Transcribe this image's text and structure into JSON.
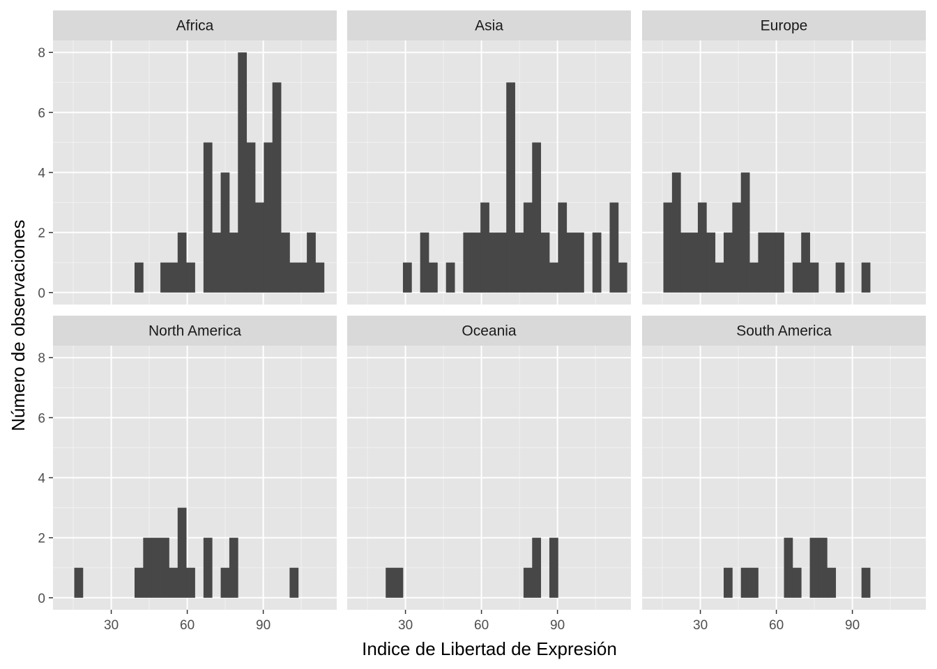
{
  "chart_data": {
    "type": "bar",
    "facet_layout": "2x3 grid",
    "xlabel": "Indice de Libertad de Expresión",
    "ylabel": "Número de observaciones",
    "xlim": [
      7,
      119
    ],
    "ylim": [
      -0.4,
      8.4
    ],
    "x_ticks": [
      30,
      60,
      90
    ],
    "y_ticks": [
      0,
      2,
      4,
      6,
      8
    ],
    "bin_width": 3.4,
    "bin_start": 15.4,
    "grid": true,
    "bar_color": "#474747",
    "panel_background": "#e5e5e5",
    "strip_background": "#d9d9d9",
    "facets": [
      {
        "label": "Africa",
        "counts": [
          0,
          0,
          0,
          0,
          0,
          0,
          0,
          1,
          0,
          0,
          1,
          1,
          2,
          1,
          0,
          5,
          2,
          4,
          2,
          8,
          5,
          3,
          5,
          7,
          2,
          1,
          1,
          2,
          1
        ]
      },
      {
        "label": "Asia",
        "counts": [
          0,
          0,
          0,
          0,
          1,
          0,
          2,
          1,
          0,
          1,
          0,
          2,
          2,
          3,
          2,
          2,
          7,
          2,
          3,
          5,
          2,
          1,
          3,
          2,
          2,
          0,
          2,
          0,
          3,
          1
        ]
      },
      {
        "label": "Europe",
        "counts": [
          3,
          4,
          2,
          2,
          3,
          2,
          1,
          2,
          3,
          4,
          1,
          2,
          2,
          2,
          0,
          1,
          2,
          1,
          0,
          0,
          1,
          0,
          0,
          1
        ]
      },
      {
        "label": "North America",
        "counts": [
          1,
          0,
          0,
          0,
          0,
          0,
          0,
          1,
          2,
          2,
          2,
          1,
          3,
          1,
          0,
          2,
          0,
          1,
          2,
          0,
          0,
          0,
          0,
          0,
          0,
          1
        ]
      },
      {
        "label": "Oceania",
        "counts": [
          0,
          0,
          1,
          1,
          0,
          0,
          0,
          0,
          0,
          0,
          0,
          0,
          0,
          0,
          0,
          0,
          0,
          0,
          1,
          2,
          0,
          2
        ]
      },
      {
        "label": "South America",
        "counts": [
          0,
          0,
          0,
          0,
          0,
          0,
          0,
          1,
          0,
          1,
          1,
          0,
          0,
          0,
          2,
          1,
          0,
          2,
          2,
          1,
          0,
          0,
          0,
          1
        ]
      }
    ]
  }
}
